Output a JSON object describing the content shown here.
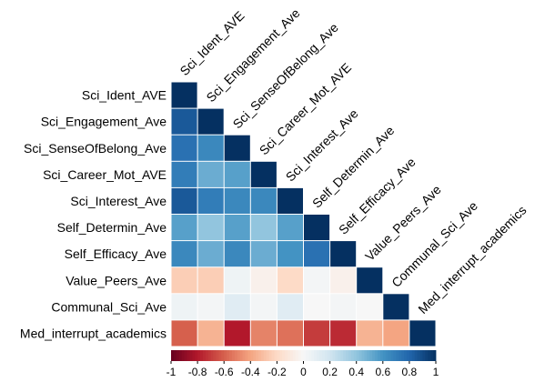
{
  "chart_data": {
    "type": "heatmap",
    "variables": [
      "Sci_Ident_AVE",
      "Sci_Engagement_Ave",
      "Sci_SenseOfBelong_Ave",
      "Sci_Career_Mot_AVE",
      "Sci_Interest_Ave",
      "Self_Determin_Ave",
      "Self_Efficacy_Ave",
      "Value_Peers_Ave",
      "Communal_Sci_Ave",
      "Med_interrupt_academics"
    ],
    "matrix": [
      [
        1.0
      ],
      [
        0.85,
        1.0
      ],
      [
        0.75,
        0.65,
        1.0
      ],
      [
        0.7,
        0.5,
        0.55,
        1.0
      ],
      [
        0.85,
        0.7,
        0.65,
        0.65,
        1.0
      ],
      [
        0.55,
        0.4,
        0.55,
        0.4,
        0.55,
        1.0
      ],
      [
        0.65,
        0.5,
        0.65,
        0.5,
        0.6,
        0.75,
        1.0
      ],
      [
        -0.25,
        -0.25,
        0.05,
        -0.05,
        -0.2,
        0.02,
        -0.05,
        1.0
      ],
      [
        0.05,
        0.02,
        0.12,
        0.02,
        0.12,
        0.0,
        0.02,
        0.0,
        1.0
      ],
      [
        -0.6,
        -0.35,
        -0.8,
        -0.5,
        -0.55,
        -0.7,
        -0.75,
        -0.35,
        -0.4,
        1.0
      ]
    ],
    "colorbar": {
      "range": [
        -1,
        1
      ],
      "ticks": [
        "-1",
        "-0.8",
        "-0.6",
        "-0.4",
        "-0.2",
        "0",
        "0.2",
        "0.4",
        "0.6",
        "0.8",
        "1"
      ]
    },
    "lower_triangle": true
  }
}
